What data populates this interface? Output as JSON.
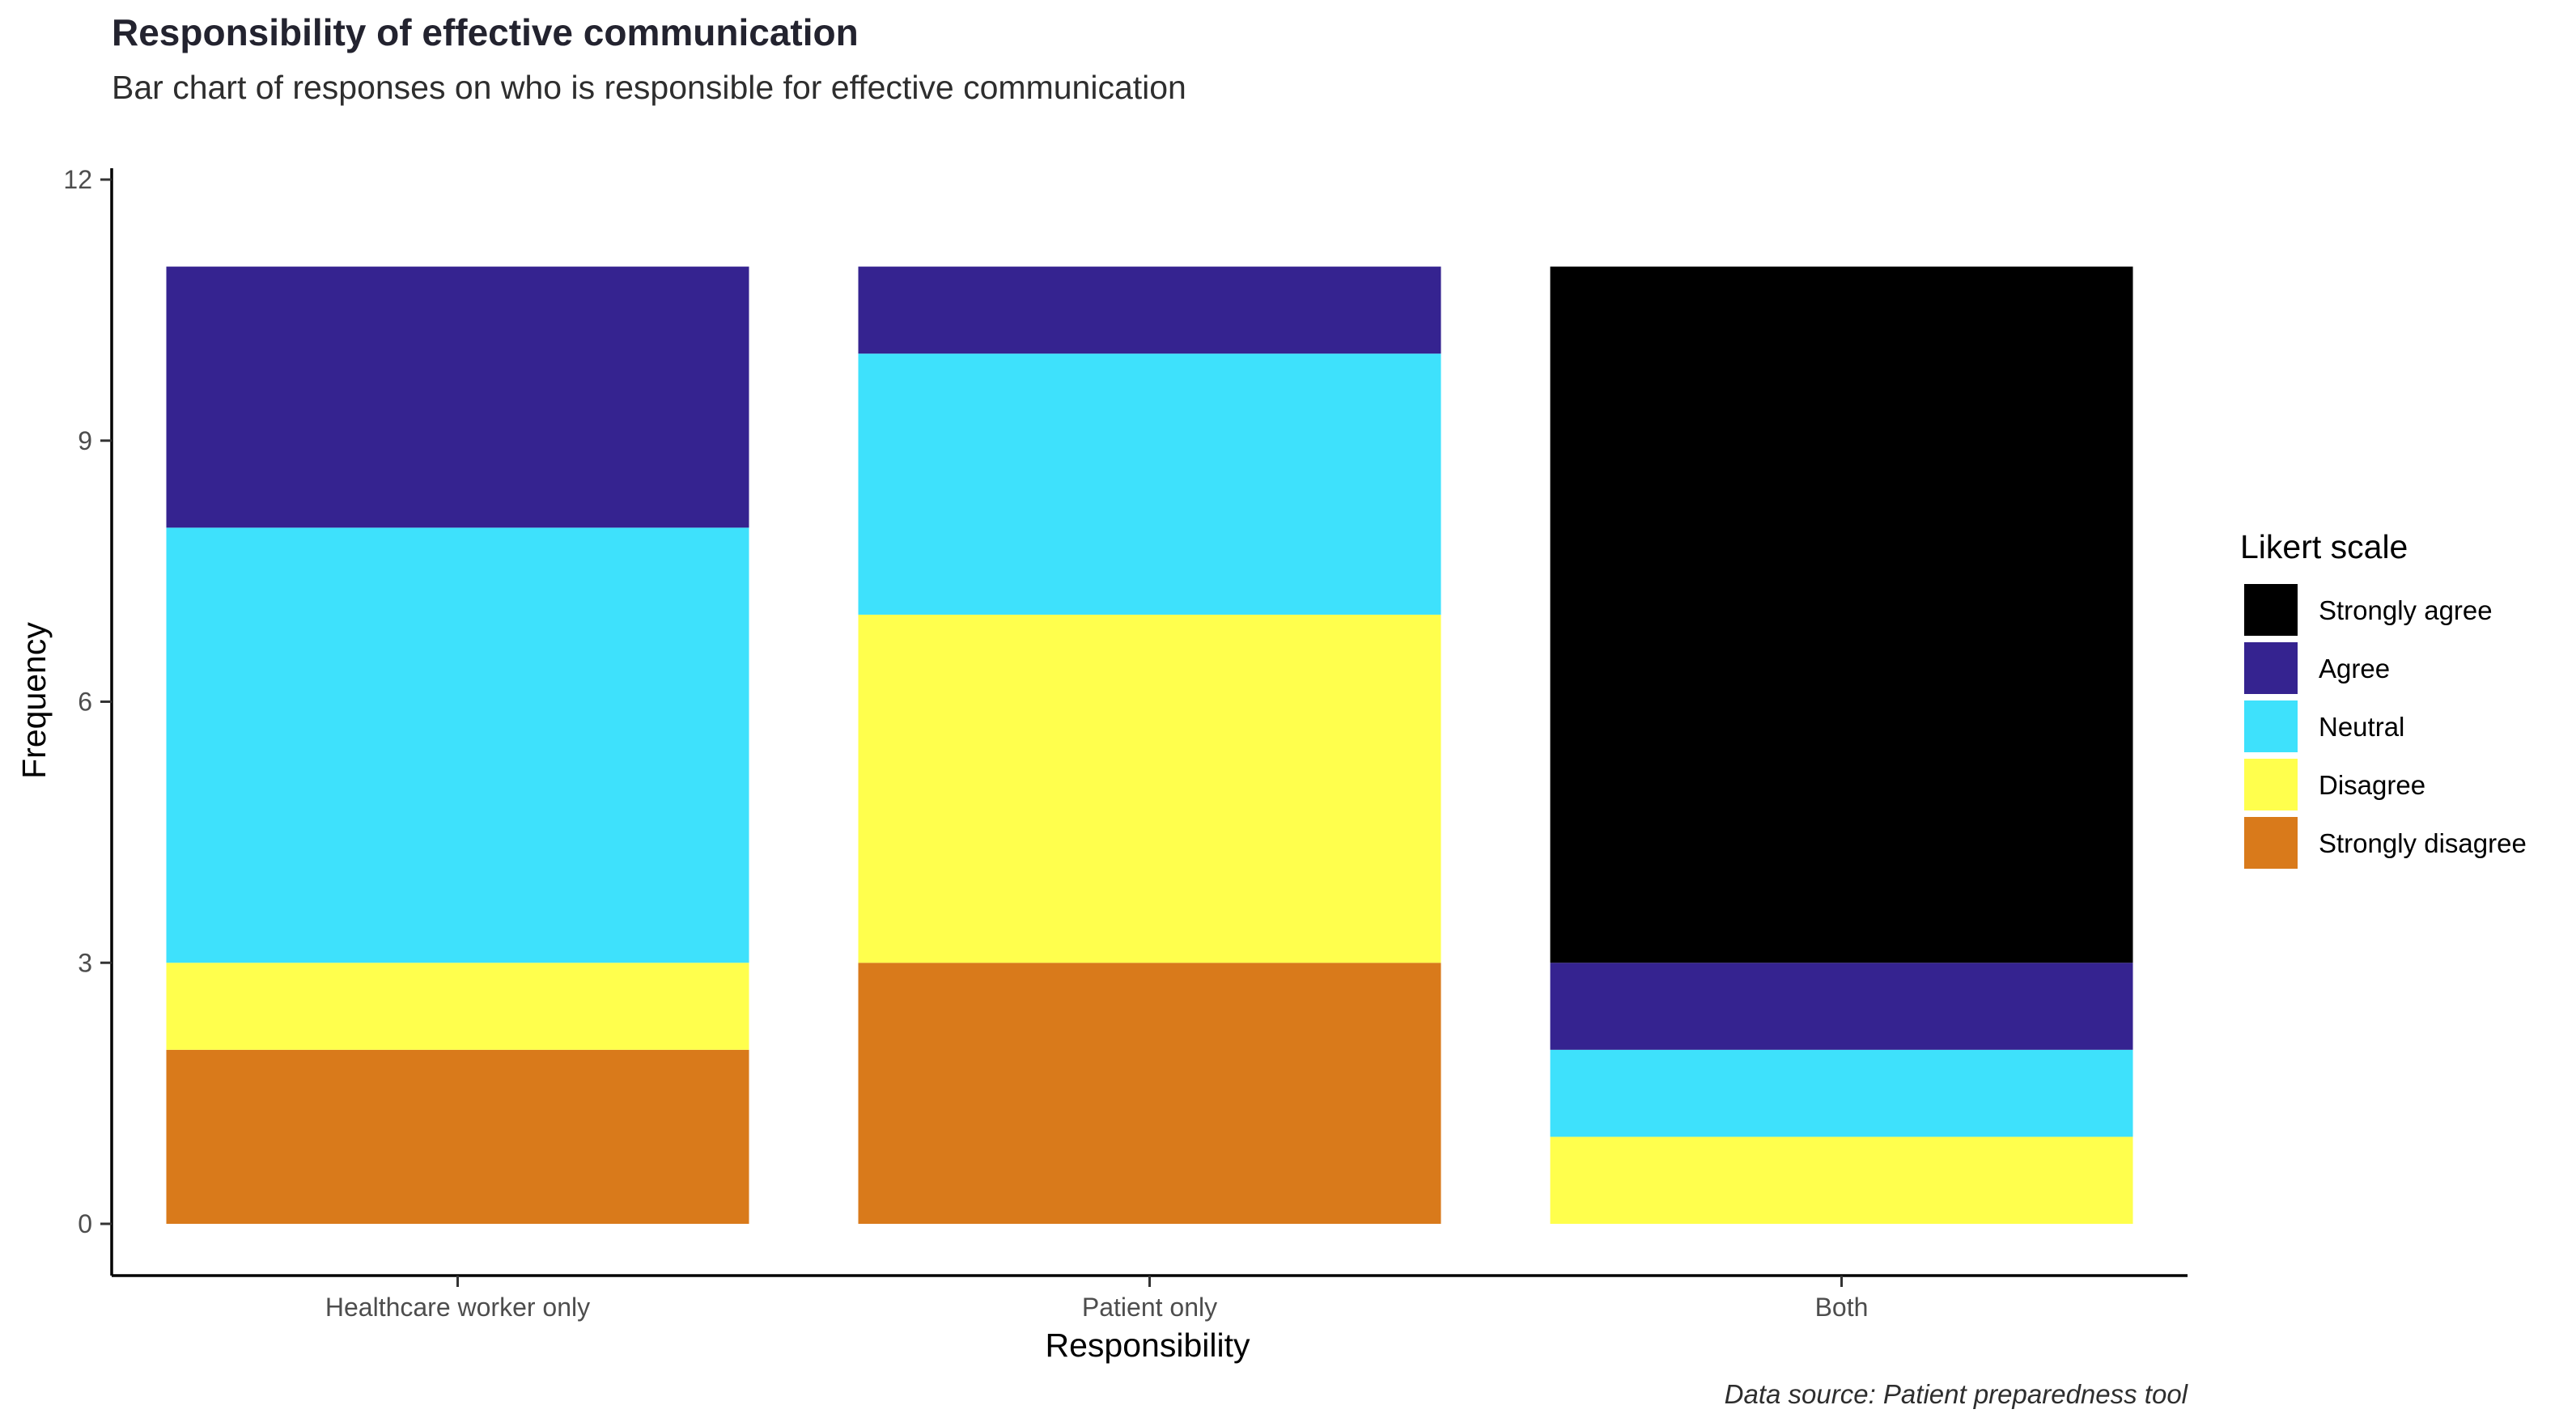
{
  "chart_data": {
    "type": "bar",
    "stacked": true,
    "title": "Responsibility of effective communication",
    "subtitle": "Bar chart of responses on who is responsible for effective communication",
    "xlabel": "Responsibility",
    "ylabel": "Frequency",
    "caption": "Data source: Patient preparedness tool",
    "categories": [
      "Healthcare worker only",
      "Patient only",
      "Both"
    ],
    "ylim": [
      0,
      12.6
    ],
    "yticks": [
      0,
      3,
      6,
      9,
      12
    ],
    "grid": false,
    "legend": {
      "title": "Likert scale",
      "position": "right"
    },
    "series": [
      {
        "name": "Strongly disagree",
        "color": "#d97a1b",
        "values": [
          2,
          3,
          0
        ]
      },
      {
        "name": "Disagree",
        "color": "#ffff4d",
        "values": [
          1,
          4,
          1
        ]
      },
      {
        "name": "Neutral",
        "color": "#3ee1fc",
        "values": [
          5,
          3,
          1
        ]
      },
      {
        "name": "Agree",
        "color": "#352390",
        "values": [
          3,
          1,
          1
        ]
      },
      {
        "name": "Strongly agree",
        "color": "#000000",
        "values": [
          0,
          0,
          8
        ]
      }
    ],
    "legend_order": [
      "Strongly agree",
      "Agree",
      "Neutral",
      "Disagree",
      "Strongly disagree"
    ]
  }
}
